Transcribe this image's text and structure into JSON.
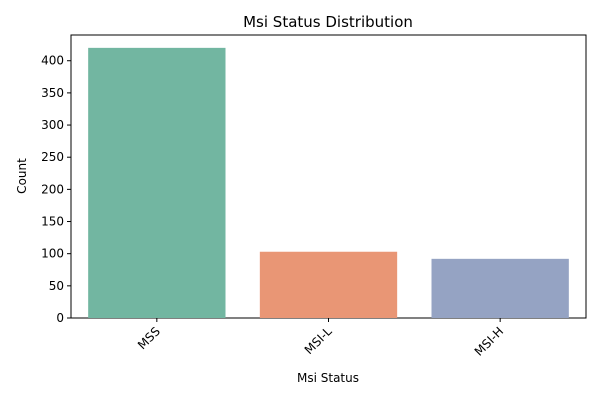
{
  "chart_data": {
    "type": "bar",
    "title": "Msi Status Distribution",
    "xlabel": "Msi Status",
    "ylabel": "Count",
    "categories": [
      "MSS",
      "MSI-L",
      "MSI-H"
    ],
    "values": [
      420,
      103,
      92
    ],
    "ylim": [
      0,
      440
    ],
    "yticks": [
      0,
      50,
      100,
      150,
      200,
      250,
      300,
      350,
      400
    ],
    "colors": [
      "#72b6a1",
      "#e99675",
      "#95a3c3"
    ],
    "grid": false,
    "legend": "none",
    "xtick_rotation": "45 degrees, right-aligned"
  }
}
